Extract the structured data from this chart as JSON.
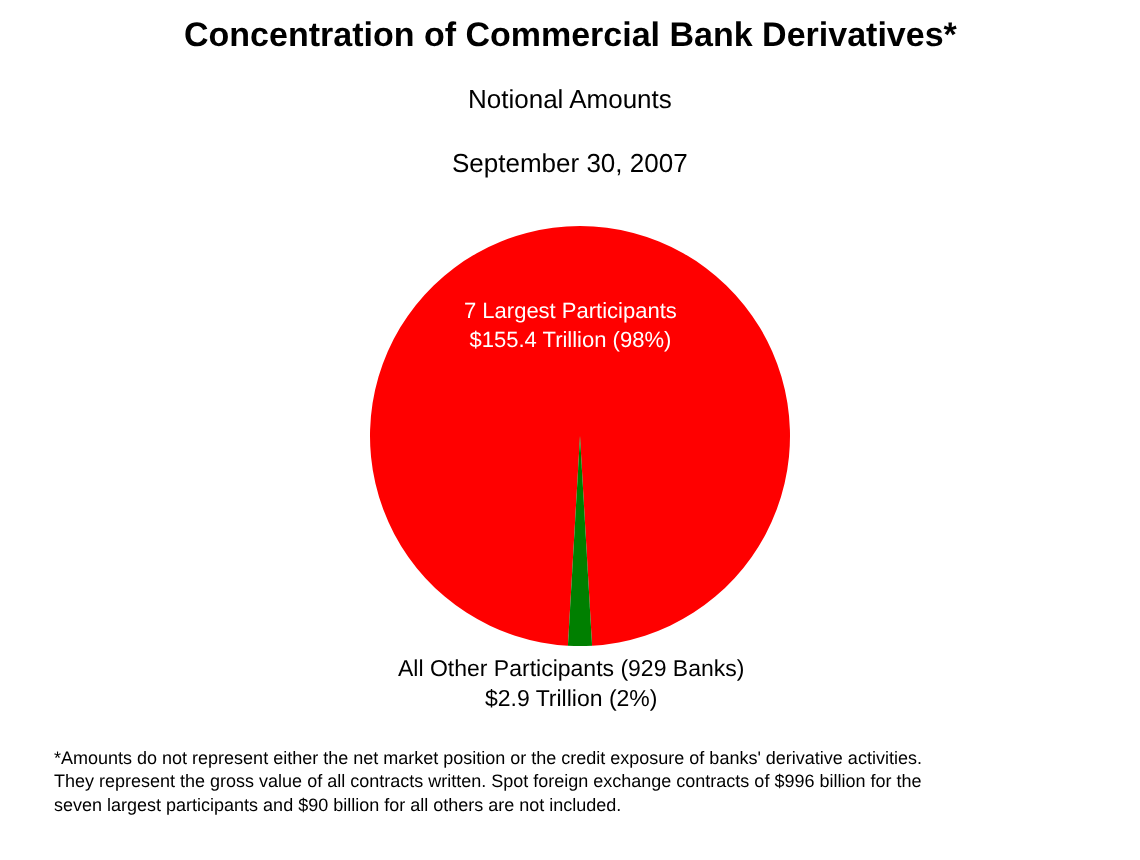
{
  "chart_data": {
    "type": "pie",
    "title": "Concentration of Commercial Bank Derivatives*",
    "subtitle": "Notional Amounts\nSeptember 30, 2007",
    "categories": [
      "7 Largest Participants",
      "All Other Participants (929 Banks)"
    ],
    "values": [
      155.4,
      2.9
    ],
    "colors": [
      "#ff0000",
      "#007f00"
    ],
    "value_labels": [
      "$155.4 Trillion (98%)",
      "$2.9 Trillion (2%)"
    ],
    "legend": false,
    "annotations": [
      "*Amounts do not represent either the net market position or the credit exposure of banks' derivative activities.\nThey represent the gross value of all contracts written. Spot foreign exchange contracts of $996 billion for the\nseven largest participants and $90 billion for all others are not included."
    ]
  }
}
